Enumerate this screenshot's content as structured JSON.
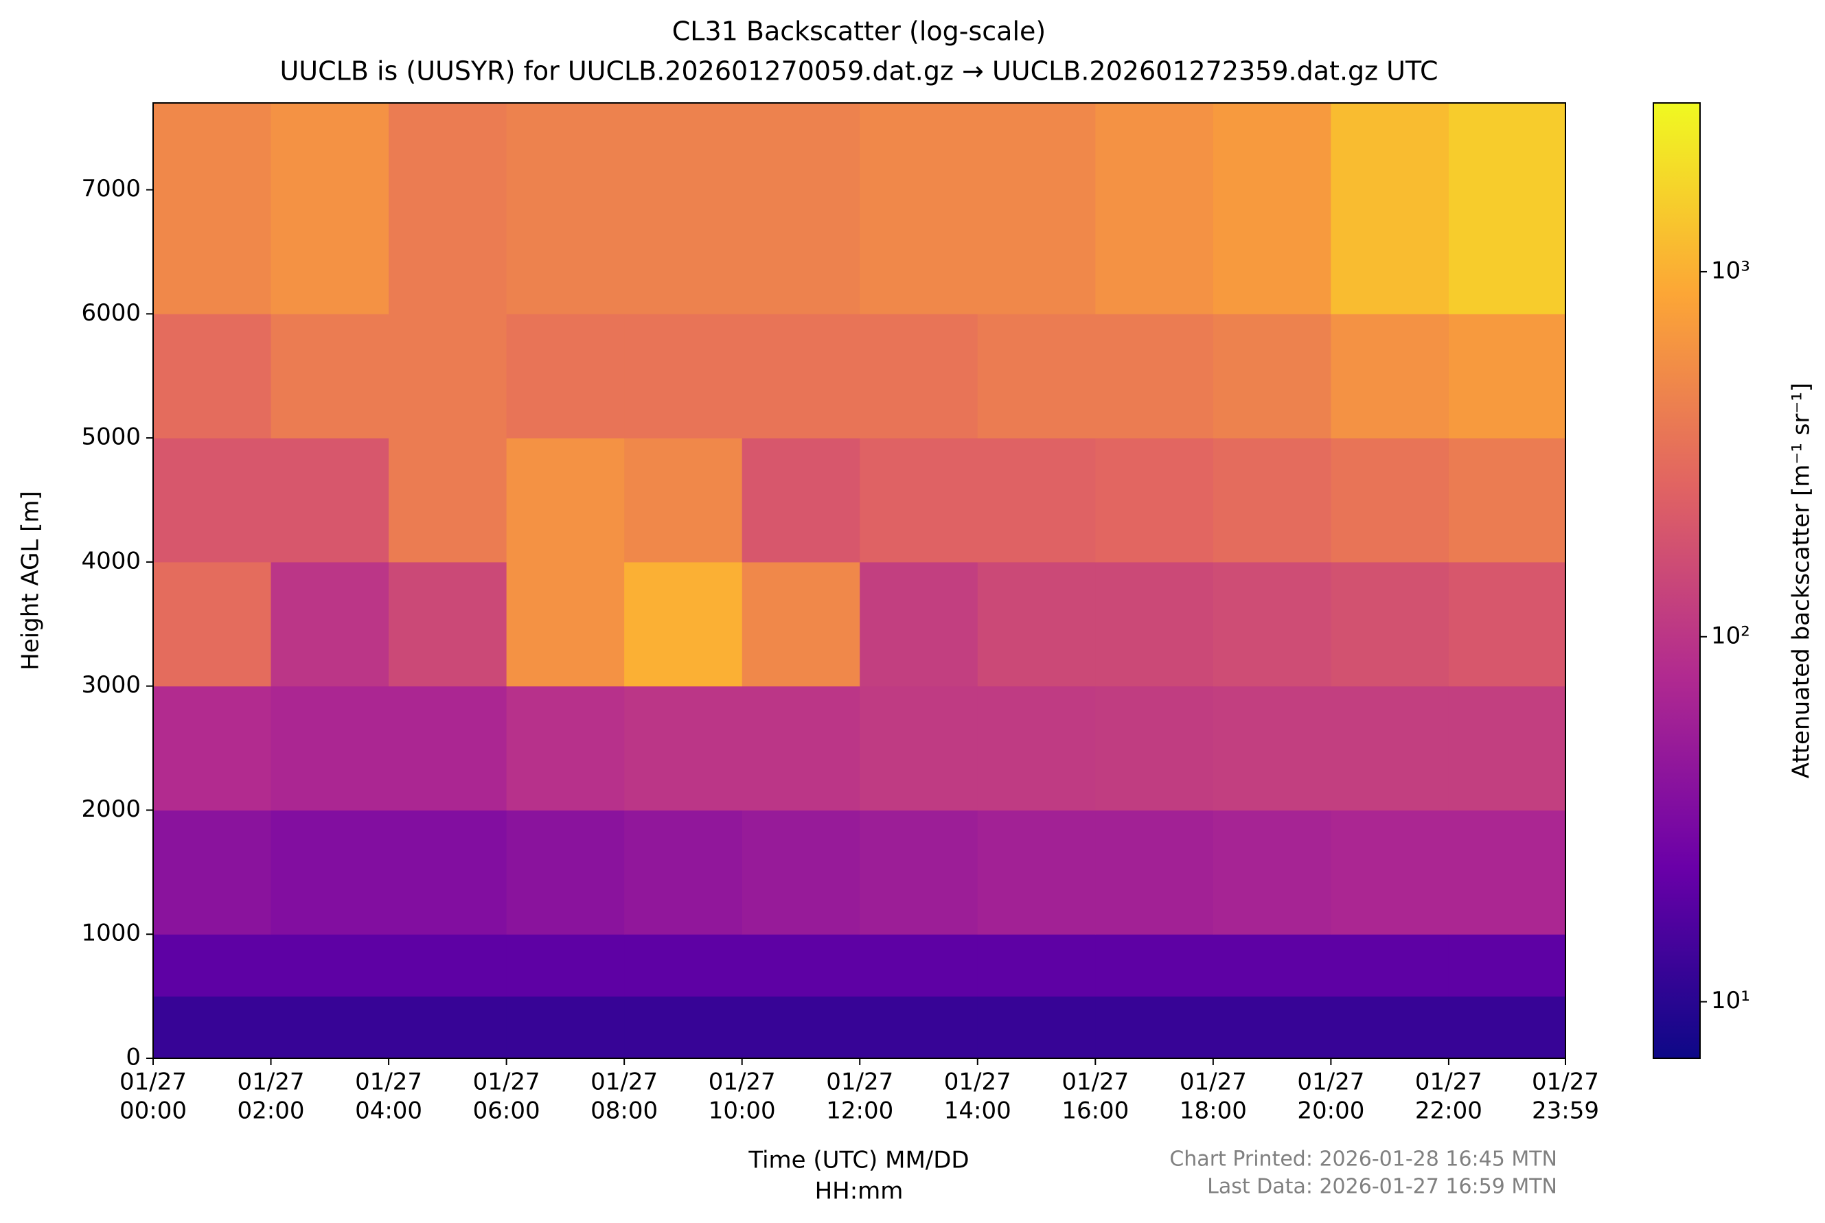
{
  "chart_data": {
    "type": "heatmap",
    "title": "CL31 Backscatter (log-scale)",
    "subtitle": "UUCLB is (UUSYR) for UUCLB.202601270059.dat.gz → UUCLB.202601272359.dat.gz UTC",
    "xlabel": [
      "Time (UTC) MM/DD",
      "HH:mm"
    ],
    "ylabel": "Height AGL [m]",
    "colorbar_label": "Attenuated backscatter [m⁻¹ sr⁻¹]",
    "notes": [
      "Chart Printed: 2026-01-28 16:45 MTN",
      "Last Data: 2026-01-27 16:59 MTN"
    ],
    "xlim": [
      0,
      23.983
    ],
    "xticks": [
      {
        "value": 0,
        "label": [
          "01/27",
          "00:00"
        ]
      },
      {
        "value": 2,
        "label": [
          "01/27",
          "02:00"
        ]
      },
      {
        "value": 4,
        "label": [
          "01/27",
          "04:00"
        ]
      },
      {
        "value": 6,
        "label": [
          "01/27",
          "06:00"
        ]
      },
      {
        "value": 8,
        "label": [
          "01/27",
          "08:00"
        ]
      },
      {
        "value": 10,
        "label": [
          "01/27",
          "10:00"
        ]
      },
      {
        "value": 12,
        "label": [
          "01/27",
          "12:00"
        ]
      },
      {
        "value": 14,
        "label": [
          "01/27",
          "14:00"
        ]
      },
      {
        "value": 16,
        "label": [
          "01/27",
          "16:00"
        ]
      },
      {
        "value": 18,
        "label": [
          "01/27",
          "18:00"
        ]
      },
      {
        "value": 20,
        "label": [
          "01/27",
          "20:00"
        ]
      },
      {
        "value": 22,
        "label": [
          "01/27",
          "22:00"
        ]
      },
      {
        "value": 23.983,
        "label": [
          "01/27",
          "23:59"
        ]
      }
    ],
    "ylim": [
      0,
      7700
    ],
    "yticks": [
      0,
      1000,
      2000,
      3000,
      4000,
      5000,
      6000,
      7000
    ],
    "clim": [
      7,
      2900
    ],
    "cscale": "log",
    "cticks": [
      {
        "value": 10,
        "label": "10¹"
      },
      {
        "value": 100,
        "label": "10²"
      },
      {
        "value": 1000,
        "label": "10³"
      }
    ],
    "colormap": [
      "#0d0887",
      "#6a00a8",
      "#b12a90",
      "#e16462",
      "#fca636",
      "#f0f921"
    ],
    "x_bins": [
      0,
      2,
      4,
      6,
      8,
      10,
      12,
      14,
      16,
      18,
      20,
      22,
      23.983
    ],
    "y_bins": [
      0,
      500,
      1000,
      2000,
      3000,
      4000,
      5000,
      6000,
      7700
    ],
    "z": [
      [
        12,
        12,
        12,
        12,
        12,
        12,
        12,
        12,
        12,
        12,
        12,
        12
      ],
      [
        20,
        20,
        20,
        20,
        20,
        20,
        20,
        20,
        20,
        20,
        20,
        20
      ],
      [
        40,
        35,
        35,
        40,
        45,
        50,
        55,
        60,
        60,
        65,
        70,
        70
      ],
      [
        80,
        70,
        70,
        90,
        100,
        100,
        110,
        110,
        115,
        120,
        120,
        120
      ],
      [
        300,
        100,
        150,
        600,
        1000,
        500,
        120,
        150,
        150,
        160,
        180,
        200
      ],
      [
        200,
        200,
        400,
        600,
        500,
        200,
        250,
        250,
        270,
        300,
        350,
        400
      ],
      [
        300,
        400,
        400,
        350,
        350,
        350,
        350,
        400,
        400,
        450,
        600,
        700
      ],
      [
        500,
        600,
        400,
        450,
        450,
        450,
        500,
        500,
        600,
        700,
        1200,
        1500
      ]
    ]
  }
}
